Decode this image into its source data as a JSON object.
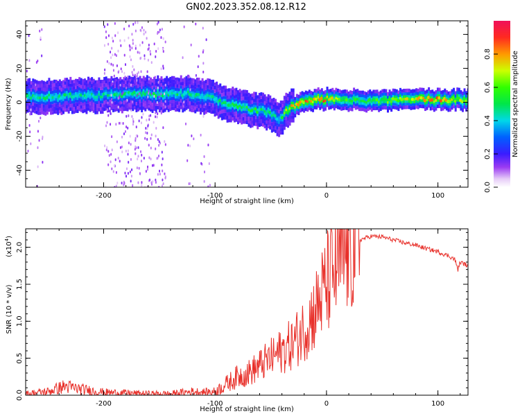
{
  "figure_title": "GN02.2023.352.08.12.R12",
  "chart_data": [
    {
      "type": "heatmap",
      "xlabel": "Height of straight line (km)",
      "ylabel": "Frequency (Hz)",
      "xlim": [
        -270,
        127
      ],
      "ylim": [
        -50,
        48
      ],
      "xticks": [
        -200,
        -100,
        0,
        100
      ],
      "xtick_labels": [
        "-200",
        "-100",
        "0",
        "100"
      ],
      "yticks": [
        -40,
        -20,
        0,
        20,
        40
      ],
      "ytick_labels": [
        "-40",
        "-20",
        "0",
        "20",
        "40"
      ],
      "ridge": {
        "x": [
          -270,
          -220,
          -150,
          -120,
          -100,
          -80,
          -60,
          -50,
          -42,
          -35,
          -20,
          0,
          20,
          50,
          80,
          100,
          127
        ],
        "freq": [
          3,
          4,
          5,
          5,
          2,
          -3,
          -5,
          -7,
          -10,
          -4,
          1,
          2,
          1.5,
          1,
          2,
          1.5,
          1.5
        ],
        "peak_amplitude": [
          0.55,
          0.5,
          0.55,
          0.5,
          0.5,
          0.6,
          0.55,
          0.5,
          0.45,
          0.8,
          0.9,
          0.9,
          0.6,
          0.65,
          0.8,
          0.9,
          0.7
        ]
      },
      "colorbar": {
        "label": "Normalized spectral amplitude",
        "range": [
          0,
          1
        ],
        "ticks": [
          0.0,
          0.2,
          0.4,
          0.6,
          0.8
        ],
        "tick_labels": [
          "0.0",
          "0.2",
          "0.4",
          "0.6",
          "0.8"
        ]
      }
    },
    {
      "type": "line",
      "xlabel": "Height of straight line (km)",
      "ylabel": "SNR (10 * v/v)",
      "y_scale_label": "(x10",
      "y_scale_exponent": "4",
      "xlim": [
        -270,
        127
      ],
      "ylim": [
        0.0,
        2.25
      ],
      "xticks": [
        -200,
        -100,
        0,
        100
      ],
      "xtick_labels": [
        "-200",
        "-100",
        "0",
        "100"
      ],
      "yticks": [
        0.0,
        0.5,
        1.0,
        1.5,
        2.0
      ],
      "ytick_labels": [
        "0.0",
        "0.5",
        "1.0",
        "1.5",
        "2.0"
      ],
      "line_color": "#e8302a",
      "series": [
        {
          "x": [
            -270,
            -250,
            -235,
            -220,
            -200,
            -180,
            -160,
            -140,
            -120,
            -110,
            -100,
            -90,
            -80,
            -70,
            -60,
            -50,
            -40,
            -30,
            -20,
            -10,
            0,
            10,
            20,
            30,
            40,
            50,
            60,
            70,
            80,
            90,
            100,
            110,
            115,
            118,
            120,
            127
          ],
          "values": [
            0.02,
            0.05,
            0.12,
            0.08,
            0.04,
            0.03,
            0.02,
            0.02,
            0.05,
            0.04,
            0.05,
            0.15,
            0.25,
            0.3,
            0.4,
            0.5,
            0.6,
            0.7,
            0.9,
            1.15,
            1.5,
            1.75,
            1.95,
            2.1,
            2.15,
            2.14,
            2.1,
            2.06,
            2.03,
            1.98,
            1.94,
            1.88,
            1.84,
            1.7,
            1.8,
            1.75
          ]
        }
      ]
    }
  ]
}
